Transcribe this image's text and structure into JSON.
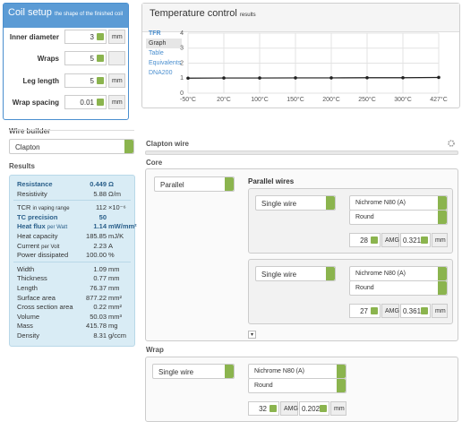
{
  "coil_setup": {
    "title": "Coil setup",
    "subtitle": "the shape of the finished coil",
    "fields": [
      {
        "label": "Inner diameter",
        "value": 3,
        "unit": "mm"
      },
      {
        "label": "Wraps",
        "value": 5
      },
      {
        "label": "Leg length",
        "value": 5,
        "unit": "mm"
      },
      {
        "label": "Wrap spacing",
        "value": 0.01,
        "unit": "mm"
      }
    ]
  },
  "temperature_control": {
    "title": "Temperature control",
    "subtitle": "results",
    "menu": [
      "TFR",
      "Graph",
      "Table",
      "Equivalents",
      "DNA200"
    ],
    "chart": {
      "type": "line",
      "categories": [
        "-50°C",
        "20°C",
        "100°C",
        "150°C",
        "200°C",
        "250°C",
        "300°C",
        "427°C"
      ],
      "values": [
        1,
        1.01,
        1.01,
        1.02,
        1.02,
        1.03,
        1.03,
        1.05
      ],
      "color": "#222",
      "ylim": [
        0,
        4
      ],
      "yticks": [
        0,
        1,
        2,
        3,
        4
      ],
      "grid": true
    }
  },
  "wire_builder": {
    "title": "Wire builder",
    "type": "Clapton",
    "wire_title": "Clapton wire"
  },
  "results": {
    "title": "Results",
    "groups": [
      [
        {
          "label": "Resistance",
          "value": "0.449",
          "unit": "Ω"
        },
        {
          "label": "Resistivity",
          "value": "5.88",
          "unit": "Ω/m"
        }
      ],
      [
        {
          "label": "TCR",
          "qualifier": "in vaping range",
          "value": "112",
          "unit": "×10⁻⁶"
        },
        {
          "label": "TC precision",
          "value": "50"
        },
        {
          "label": "Heat flux",
          "qualifier": "per Watt",
          "value": "1.14",
          "unit": "mW/mm²"
        },
        {
          "label": "Heat capacity",
          "value": "185.85",
          "unit": "mJ/K"
        },
        {
          "label": "Current",
          "qualifier": "per Volt",
          "value": "2.23",
          "unit": "A"
        },
        {
          "label": "Power dissipated",
          "value": "100.00",
          "unit": "%"
        }
      ],
      [
        {
          "label": "Width",
          "value": "1.09",
          "unit": "mm"
        },
        {
          "label": "Thickness",
          "value": "0.77",
          "unit": "mm"
        },
        {
          "label": "Length",
          "value": "76.37",
          "unit": "mm"
        },
        {
          "label": "Surface area",
          "value": "877.22",
          "unit": "mm²"
        },
        {
          "label": "Cross section area",
          "value": "0.22",
          "unit": "mm²"
        },
        {
          "label": "Volume",
          "value": "50.03",
          "unit": "mm³"
        },
        {
          "label": "Mass",
          "value": "415.78",
          "unit": "mg"
        },
        {
          "label": "Density",
          "value": "8.31",
          "unit": "g/ccm"
        }
      ]
    ]
  },
  "core": {
    "title": "Core",
    "type": "Parallel",
    "wires_title": "Parallel wires",
    "wires": [
      {
        "kind": "Single wire",
        "material": "Nichrome N80 (A)",
        "shape": "Round",
        "gauge": 28,
        "gauge_unit": "AMG",
        "diameter": 0.321,
        "unit": "mm"
      },
      {
        "kind": "Single wire",
        "material": "Nichrome N80 (A)",
        "shape": "Round",
        "gauge": 27,
        "gauge_unit": "AMG",
        "diameter": 0.361,
        "unit": "mm"
      }
    ]
  },
  "wrap": {
    "title": "Wrap",
    "wire": {
      "kind": "Single wire",
      "material": "Nichrome N80 (A)",
      "shape": "Round",
      "gauge": 32,
      "gauge_unit": "AMG",
      "diameter": 0.202,
      "unit": "mm"
    }
  }
}
